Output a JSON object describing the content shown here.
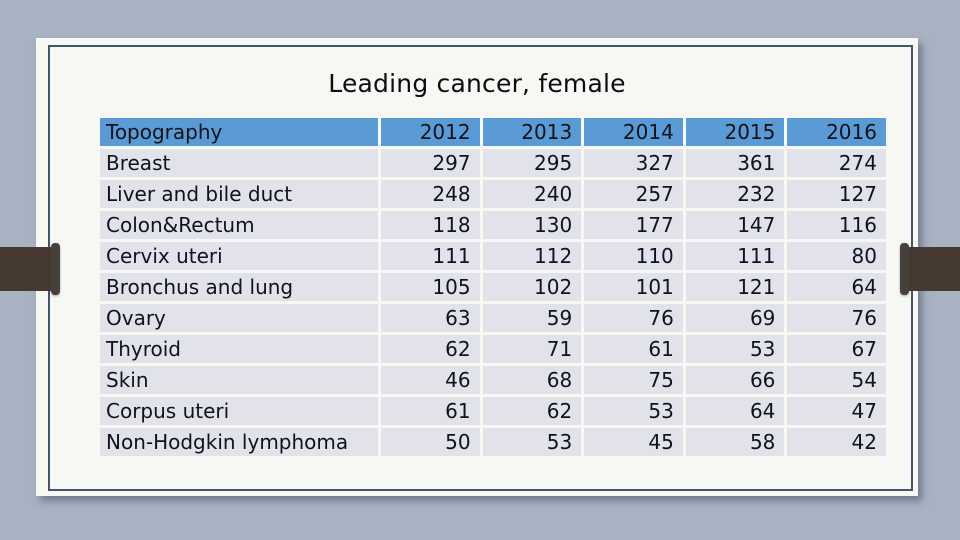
{
  "slide": {
    "page_background_color": "#a9b2c2",
    "slide_background_color": "#f7f7f4",
    "frame_border_color": "#44546a",
    "accent_bar_color": "#463931"
  },
  "chart_data": {
    "type": "table",
    "title": "Leading cancer, female",
    "columns": [
      "Topography",
      "2012",
      "2013",
      "2014",
      "2015",
      "2016"
    ],
    "rows": [
      [
        "Breast",
        297,
        295,
        327,
        361,
        274
      ],
      [
        "Liver and bile duct",
        248,
        240,
        257,
        232,
        127
      ],
      [
        "Colon&Rectum",
        118,
        130,
        177,
        147,
        116
      ],
      [
        "Cervix uteri",
        111,
        112,
        110,
        111,
        80
      ],
      [
        "Bronchus and lung",
        105,
        102,
        101,
        121,
        64
      ],
      [
        "Ovary",
        63,
        59,
        76,
        69,
        76
      ],
      [
        "Thyroid",
        62,
        71,
        61,
        53,
        67
      ],
      [
        "Skin",
        46,
        68,
        75,
        66,
        54
      ],
      [
        "Corpus uteri",
        61,
        62,
        53,
        64,
        47
      ],
      [
        "Non-Hodgkin lymphoma",
        50,
        53,
        45,
        58,
        42
      ]
    ],
    "layout": {
      "header_fill": "#5b9bd5",
      "row_fill": "#e2e2eb",
      "text_color": "#10131c",
      "first_column_align": "left",
      "value_columns_align": "right",
      "grid": "white gaps between cells"
    }
  }
}
